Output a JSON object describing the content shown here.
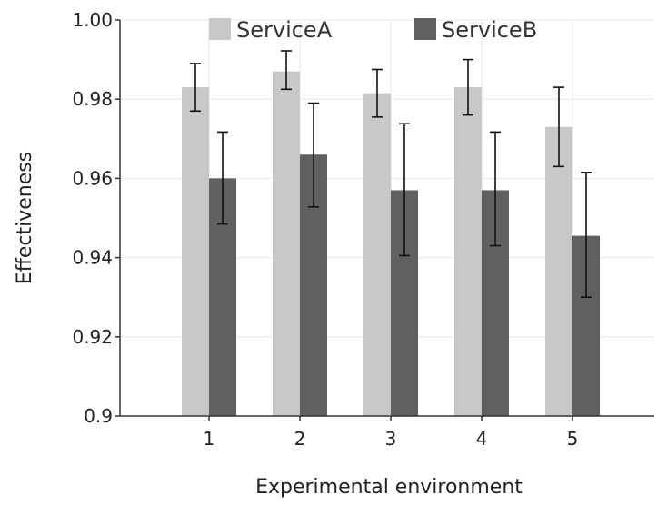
{
  "chart_data": {
    "type": "bar",
    "categories": [
      "1",
      "2",
      "3",
      "4",
      "5"
    ],
    "series": [
      {
        "name": "ServiceA",
        "color": "#c8c8c8",
        "values": [
          0.983,
          0.987,
          0.9815,
          0.983,
          0.973
        ],
        "error_low": [
          0.977,
          0.9825,
          0.9755,
          0.976,
          0.963
        ],
        "error_high": [
          0.989,
          0.9922,
          0.9875,
          0.99,
          0.983
        ]
      },
      {
        "name": "ServiceB",
        "color": "#606060",
        "values": [
          0.96,
          0.966,
          0.957,
          0.957,
          0.9455
        ],
        "error_low": [
          0.9485,
          0.9528,
          0.9405,
          0.943,
          0.93
        ],
        "error_high": [
          0.9717,
          0.979,
          0.9738,
          0.9717,
          0.9615
        ]
      }
    ],
    "xlabel": "Experimental environment",
    "ylabel": "Effectiveness",
    "ylim": [
      0.9,
      1.0
    ],
    "yticks": [
      "0.9",
      "0.92",
      "0.94",
      "0.96",
      "0.98",
      "1.00"
    ],
    "ytick_values": [
      0.9,
      0.92,
      0.94,
      0.96,
      0.98,
      1.0
    ],
    "grid": true,
    "legend_position": "top"
  }
}
